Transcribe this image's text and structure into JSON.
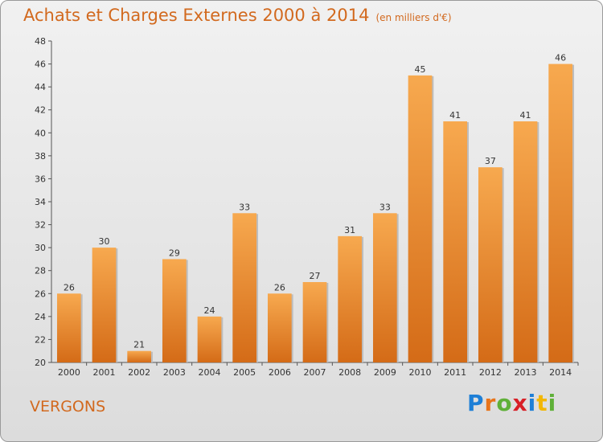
{
  "header": {
    "title": "Achats et Charges Externes 2000 à 2014",
    "unit": "(en milliers d'€)"
  },
  "footer": {
    "location": "VERGONS",
    "logo": "Proxiti"
  },
  "colors": {
    "bar_top": "#f7a94f",
    "bar_bottom": "#d46b17",
    "title": "#d2691e",
    "logo": [
      "#1e7fd6",
      "#e8741a",
      "#5fb038",
      "#d81f26",
      "#1e7fd6",
      "#f2b705",
      "#5fb038"
    ]
  },
  "chart_data": {
    "type": "bar",
    "categories": [
      "2000",
      "2001",
      "2002",
      "2003",
      "2004",
      "2005",
      "2006",
      "2007",
      "2008",
      "2009",
      "2010",
      "2011",
      "2012",
      "2013",
      "2014"
    ],
    "values": [
      26,
      30,
      21,
      29,
      24,
      33,
      26,
      27,
      31,
      33,
      45,
      41,
      37,
      41,
      46
    ],
    "title": "Achats et Charges Externes 2000 à 2014",
    "subtitle": "(en milliers d'€)",
    "xlabel": "",
    "ylabel": "",
    "ylim": [
      20,
      48
    ],
    "yticks": [
      20,
      22,
      24,
      26,
      28,
      30,
      32,
      34,
      36,
      38,
      40,
      42,
      44,
      46,
      48
    ],
    "grid": false,
    "legend": "none"
  }
}
